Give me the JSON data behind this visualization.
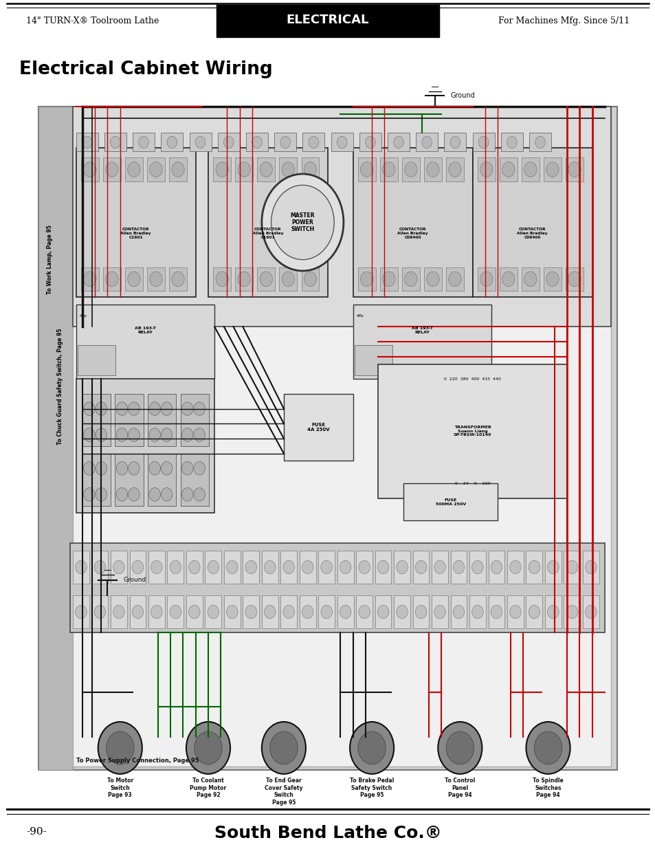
{
  "page_title_left": "14\" TURN-X® Toolroom Lathe",
  "page_title_center": "ELECTRICAL",
  "page_title_right": "For Machines Mfg. Since 5/11",
  "main_title": "Electrical Cabinet Wiring",
  "page_num": "-90-",
  "footer": "South Bend Lathe Co.®",
  "bg_color": "#ffffff",
  "red": "#cc0000",
  "black": "#111111",
  "green": "#006600",
  "label_left_top": "To Work Lamp, Page 95",
  "label_left_bottom": "To Chuck Guard Safety Switch, Page 95",
  "label_bottom_footer": "To Power Supply Connection, Page 95",
  "master_power": "MASTER\nPOWER\nSWITCH",
  "transformer_label": "TRANSFORMER\nSuenn Liang\nSP-TBSW-10140",
  "transformer_taps": "0  220  380  400  415  440",
  "transformer_out": "0    24    0    220",
  "fuse1": "FUSE\n4A 250V",
  "fuse2": "FUSE\n500MA 250V",
  "ground1": "Ground",
  "ground2": "Ground",
  "contactor_positions": [
    [
      10,
      67,
      19,
      20,
      "CONTACTOR\nAllen Bradley\nC1601"
    ],
    [
      31,
      67,
      19,
      20,
      "CONTACTOR\nAllen Bradley\nC1601"
    ],
    [
      54,
      67,
      19,
      20,
      "CONTACTOR\nAllen Bradley\nC09400"
    ],
    [
      73,
      67,
      19,
      20,
      "CONTACTOR\nAllen Bradley\nC09400"
    ]
  ],
  "relay_positions": [
    [
      10,
      56,
      22,
      10,
      "AB 193-T\nRELAY"
    ],
    [
      54,
      56,
      22,
      10,
      "AB 193-T\nRELAY"
    ]
  ],
  "bottom_labels": [
    [
      17,
      "To Motor\nSwitch\nPage 93"
    ],
    [
      31,
      "To Coolant\nPump Motor\nPage 92"
    ],
    [
      43,
      "To End Gear\nCover Safety\nSwitch\nPage 95"
    ],
    [
      57,
      "To Brake Pedal\nSafety Switch\nPage 95"
    ],
    [
      71,
      "To Control\nPanel\nPage 94"
    ],
    [
      85,
      "To Spindle\nSwitches\nPage 94"
    ]
  ],
  "connector_x": [
    17,
    31,
    43,
    57,
    71,
    85
  ]
}
